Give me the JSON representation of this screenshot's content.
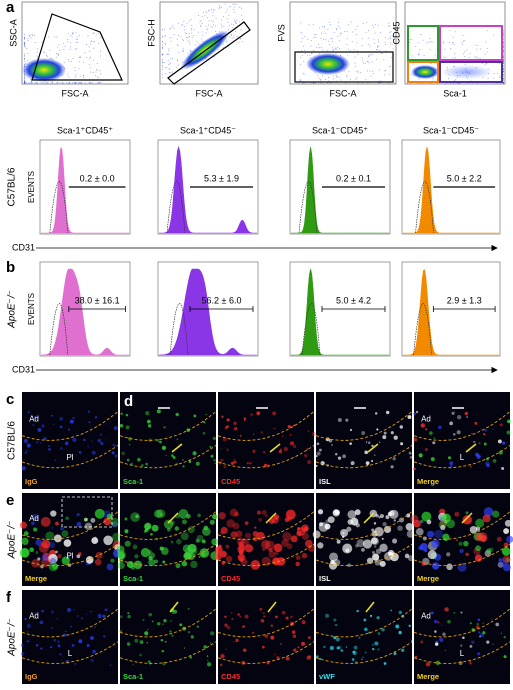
{
  "panel_a": {
    "letter": "a",
    "gating": [
      {
        "x_label": "FSC-A",
        "y_label": "SSC-A"
      },
      {
        "x_label": "FSC-A",
        "y_label": "FSC-H"
      },
      {
        "x_label": "FSC-A",
        "y_label": "FVS"
      },
      {
        "x_label": "Sca-1",
        "y_label": "CD45"
      }
    ],
    "columns": [
      {
        "title": "Sca-1⁺CD45⁺",
        "color": "#e070d0"
      },
      {
        "title": "Sca-1⁺CD45⁻",
        "color": "#8a35e6"
      },
      {
        "title": "Sca-1⁻CD45⁺",
        "color": "#2f9a12"
      },
      {
        "title": "Sca-1⁻CD45⁻",
        "color": "#f28a00"
      }
    ],
    "row_label": "C57BL/6",
    "y_axis": "EVENTS",
    "stats": [
      "0.2 ± 0.0",
      "5.3 ± 1.9",
      "0.2 ± 0.1",
      "5.0 ± 2.2"
    ],
    "x_axis": "CD31"
  },
  "panel_b": {
    "letter": "b",
    "row_label": "ApoE⁻/⁻",
    "y_axis": "EVENTS",
    "stats": [
      "38.0 ± 16.1",
      "56.2 ± 6.0",
      "5.0 ± 4.2",
      "2.9 ± 1.3"
    ],
    "x_axis": "CD31"
  },
  "panel_c": {
    "letter": "c",
    "row_label": "C57BL/6",
    "tile": {
      "stain": "IgG",
      "color": "#f0a020",
      "labels": [
        "Ad",
        "Pl"
      ]
    }
  },
  "panel_d": {
    "letter": "d",
    "tiles": [
      {
        "stain": "Sca-1",
        "color": "#39d53a"
      },
      {
        "stain": "CD45",
        "color": "#ff2a2a"
      },
      {
        "stain": "ISL",
        "color": "#ffffff"
      },
      {
        "stain": "Merge",
        "color": "#f0d020",
        "labels": [
          "Ad",
          "L"
        ]
      }
    ]
  },
  "panel_e": {
    "letter": "e",
    "row_label": "ApoE⁻/⁻",
    "tiles": [
      {
        "stain": "Merge",
        "color": "#f0d020",
        "labels": [
          "Ad",
          "Pl"
        ]
      },
      {
        "stain": "Sca-1",
        "color": "#39d53a"
      },
      {
        "stain": "CD45",
        "color": "#ff2a2a"
      },
      {
        "stain": "ISL",
        "color": "#ffffff"
      },
      {
        "stain": "Merge",
        "color": "#f0d020"
      }
    ]
  },
  "panel_f": {
    "letter": "f",
    "row_label": "ApoE⁻/⁻",
    "tiles": [
      {
        "stain": "IgG",
        "color": "#f0a020",
        "labels": [
          "Ad",
          "L"
        ]
      },
      {
        "stain": "Sca-1",
        "color": "#39d53a"
      },
      {
        "stain": "CD45",
        "color": "#ff2a2a"
      },
      {
        "stain": "vWF",
        "color": "#30e0f0"
      },
      {
        "stain": "Merge",
        "color": "#f0d020",
        "labels": [
          "Ad",
          "L"
        ]
      }
    ]
  }
}
